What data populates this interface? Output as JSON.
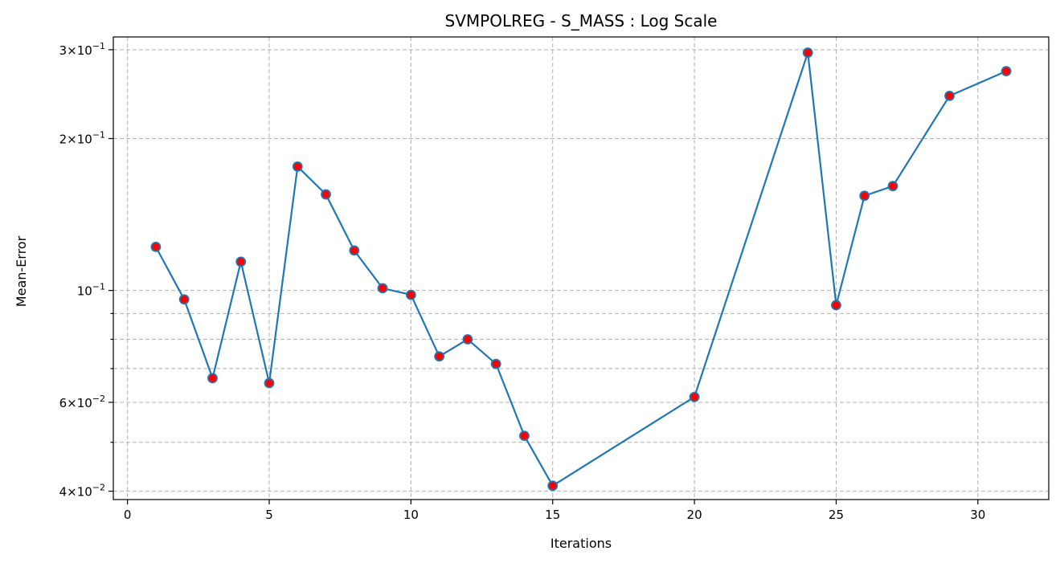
{
  "chart_data": {
    "type": "line",
    "title": "SVMPOLREG - S_MASS : Log Scale",
    "xlabel": "Iterations",
    "ylabel": "Mean-Error",
    "yscale": "log",
    "grid": true,
    "xlim": [
      -0.5,
      32.5
    ],
    "ylim": [
      0.0385,
      0.318
    ],
    "xticks": [
      0,
      5,
      10,
      15,
      20,
      25,
      30
    ],
    "xtick_labels": [
      "0",
      "5",
      "10",
      "15",
      "20",
      "25",
      "30"
    ],
    "yticks_major": [
      0.04,
      0.06,
      0.1,
      0.2,
      0.3
    ],
    "ytick_labels": [
      {
        "mantissa": "4",
        "base": "10",
        "exp": "−2"
      },
      {
        "mantissa": "6",
        "base": "10",
        "exp": "−2"
      },
      {
        "mantissa": "",
        "base": "10",
        "exp": "−1"
      },
      {
        "mantissa": "2",
        "base": "10",
        "exp": "−1"
      },
      {
        "mantissa": "3",
        "base": "10",
        "exp": "−1"
      }
    ],
    "ygrid_minor": [
      0.05,
      0.07,
      0.08,
      0.09
    ],
    "line_color": "#1f77b4",
    "marker_color": "#ff0000",
    "series": [
      {
        "x": [
          1,
          2,
          3,
          4,
          5,
          6,
          7,
          8,
          9,
          10,
          11,
          12,
          13,
          14,
          15,
          20,
          24,
          25,
          26,
          27,
          29,
          31
        ],
        "y": [
          0.122,
          0.096,
          0.067,
          0.114,
          0.0655,
          0.176,
          0.155,
          0.12,
          0.101,
          0.098,
          0.074,
          0.08,
          0.0715,
          0.0515,
          0.041,
          0.0615,
          0.296,
          0.0935,
          0.154,
          0.161,
          0.243,
          0.272
        ]
      }
    ]
  }
}
